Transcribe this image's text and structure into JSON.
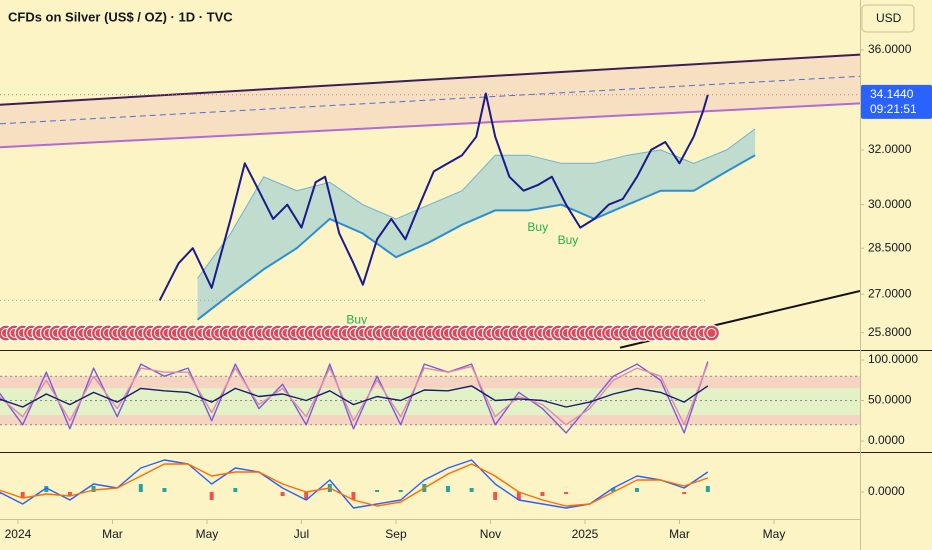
{
  "chart_data": [
    {
      "type": "line",
      "title": "CFDs on Silver (US$ / OZ) · 1D · TVC",
      "currency": "USD",
      "log": true,
      "xlim": [
        -0.38,
        17.82
      ],
      "xticks": [
        {
          "value": 0,
          "label": "2024"
        },
        {
          "value": 2,
          "label": "Mar"
        },
        {
          "value": 4,
          "label": "May"
        },
        {
          "value": 6,
          "label": "Jul"
        },
        {
          "value": 8,
          "label": "Sep"
        },
        {
          "value": 10,
          "label": "Nov"
        },
        {
          "value": 12,
          "label": "2025"
        },
        {
          "value": 14,
          "label": "Mar"
        },
        {
          "value": 16,
          "label": "May"
        }
      ],
      "ylim": [
        25.28,
        38.18
      ],
      "yticks": [
        {
          "value": 36,
          "label": "36.0000"
        },
        {
          "value": 32,
          "label": "32.0000"
        },
        {
          "value": 30,
          "label": "30.0000"
        },
        {
          "value": 28.5,
          "label": "28.5000"
        },
        {
          "value": 27,
          "label": "27.0000"
        },
        {
          "value": 25.8,
          "label": "25.8000"
        }
      ],
      "x": [
        3.0,
        3.4,
        3.7,
        4.1,
        4.5,
        4.8,
        5.1,
        5.4,
        5.7,
        6.0,
        6.3,
        6.5,
        6.8,
        7.1,
        7.3,
        7.6,
        7.9,
        8.2,
        8.5,
        8.8,
        9.1,
        9.4,
        9.7,
        9.9,
        10.1,
        10.4,
        10.7,
        11.0,
        11.3,
        11.6,
        11.9,
        12.2,
        12.5,
        12.8,
        13.1,
        13.4,
        13.7,
        14.0,
        14.3,
        14.5,
        14.6
      ],
      "series": [
        {
          "color": "#1a1a8c",
          "values": [
            26.8,
            28.0,
            28.5,
            27.2,
            29.5,
            31.5,
            30.5,
            29.5,
            30.0,
            29.2,
            30.8,
            31.0,
            29.0,
            28.0,
            27.3,
            28.8,
            29.5,
            28.8,
            30.0,
            31.2,
            31.5,
            31.8,
            32.5,
            34.2,
            32.5,
            31.0,
            30.5,
            30.7,
            31.0,
            30.0,
            29.2,
            29.5,
            30.0,
            30.2,
            31.0,
            32.0,
            32.3,
            31.5,
            32.5,
            33.5,
            34.14
          ]
        }
      ],
      "last_price": {
        "value": 34.144,
        "label": "34.1440"
      },
      "countdown": "09:21:51",
      "cloud": {
        "color": "#8ec9d8",
        "edge": "#2a8fd0",
        "x": [
          3.8,
          4.5,
          5.2,
          5.9,
          6.6,
          7.3,
          8.0,
          8.7,
          9.4,
          10.1,
          10.8,
          11.5,
          12.2,
          12.9,
          13.6,
          14.3,
          15.0,
          15.6
        ],
        "upper": [
          27.5,
          29.0,
          31.0,
          30.5,
          30.8,
          30.0,
          29.5,
          30.0,
          30.5,
          31.8,
          31.8,
          31.5,
          31.5,
          31.8,
          32.0,
          31.5,
          32.0,
          32.8
        ],
        "lower": [
          26.2,
          27.0,
          27.8,
          28.5,
          29.5,
          29.0,
          28.2,
          28.7,
          29.3,
          29.8,
          29.8,
          30.0,
          29.5,
          30.0,
          30.5,
          30.5,
          31.2,
          31.8
        ]
      },
      "channel_fill": "#f5d9c0",
      "trendlines": [
        {
          "x": [
            -0.38,
            17.82
          ],
          "y": [
            33.75,
            35.8
          ],
          "color": "#3a1f5a",
          "style": "solid"
        },
        {
          "x": [
            -0.38,
            17.82
          ],
          "y": [
            32.1,
            33.8
          ],
          "color": "#b36ad6",
          "style": "solid"
        },
        {
          "x": [
            -0.38,
            17.82
          ],
          "y": [
            33.0,
            34.9
          ],
          "color": "#4a6fd6",
          "style": "dashed"
        },
        {
          "x": [
            -0.38,
            17.82
          ],
          "y": [
            34.144,
            34.144
          ],
          "color": "#c77",
          "style": "dotted"
        },
        {
          "x": [
            -0.38,
            14.6
          ],
          "y": [
            26.8,
            26.8
          ],
          "color": "#b9a",
          "style": "dotted"
        },
        {
          "x": [
            12.74,
            17.82
          ],
          "y": [
            25.35,
            27.1
          ],
          "color": "#111111",
          "style": "solid"
        }
      ],
      "annotations": [
        {
          "text": "Buy",
          "x": 11.0,
          "y": 29.2
        },
        {
          "text": "Buy",
          "x": 11.64,
          "y": 28.75
        },
        {
          "text": "Buy",
          "x": 7.17,
          "y": 26.18
        }
      ],
      "annotation_color": "#22b14c"
    },
    {
      "type": "line",
      "ylim": [
        -13.6,
        109.9
      ],
      "yticks": [
        {
          "value": 100,
          "label": "100.0000"
        },
        {
          "value": 50,
          "label": "50.0000"
        },
        {
          "value": 0,
          "label": "0.0000"
        }
      ],
      "bands": [
        {
          "from": 65,
          "to": 80,
          "color": "#f2c6c0"
        },
        {
          "from": 32,
          "to": 65,
          "color": "#d8f0c8"
        },
        {
          "from": 20,
          "to": 32,
          "color": "#f2c6c0"
        }
      ],
      "hlines": [
        80,
        50,
        20
      ],
      "x": [
        -0.4,
        0.1,
        0.6,
        1.1,
        1.6,
        2.1,
        2.6,
        3.1,
        3.6,
        4.1,
        4.6,
        5.1,
        5.6,
        6.1,
        6.6,
        7.1,
        7.6,
        8.1,
        8.6,
        9.1,
        9.6,
        10.1,
        10.6,
        11.1,
        11.6,
        12.1,
        12.6,
        13.1,
        13.6,
        14.1,
        14.6
      ],
      "series": [
        {
          "color": "#7b5cd6",
          "values": [
            60,
            20,
            85,
            15,
            90,
            30,
            95,
            80,
            90,
            25,
            95,
            40,
            70,
            20,
            95,
            15,
            80,
            20,
            95,
            85,
            95,
            20,
            60,
            40,
            10,
            45,
            80,
            95,
            75,
            10,
            98
          ]
        },
        {
          "color": "#e08ab0",
          "values": [
            55,
            30,
            75,
            25,
            80,
            40,
            90,
            85,
            85,
            35,
            90,
            45,
            65,
            30,
            90,
            25,
            75,
            30,
            90,
            85,
            92,
            30,
            55,
            45,
            20,
            40,
            75,
            90,
            80,
            20,
            95
          ]
        },
        {
          "color": "#1a1a6e",
          "values": [
            52,
            42,
            58,
            45,
            60,
            48,
            65,
            62,
            60,
            48,
            65,
            55,
            58,
            50,
            62,
            45,
            55,
            50,
            63,
            62,
            68,
            50,
            52,
            50,
            42,
            48,
            58,
            65,
            60,
            48,
            68
          ]
        }
      ]
    },
    {
      "type": "line",
      "ylim": [
        -0.65,
        0.925
      ],
      "yticks": [
        {
          "value": 0,
          "label": "0.0000"
        }
      ],
      "x": [
        -0.4,
        0.1,
        0.6,
        1.1,
        1.6,
        2.1,
        2.6,
        3.1,
        3.6,
        4.1,
        4.6,
        5.1,
        5.6,
        6.1,
        6.6,
        7.1,
        7.6,
        8.1,
        8.6,
        9.1,
        9.6,
        10.1,
        10.6,
        11.1,
        11.6,
        12.1,
        12.6,
        13.1,
        13.6,
        14.1,
        14.6
      ],
      "series": [
        {
          "color": "#2962ff",
          "values": [
            0,
            -0.3,
            0.1,
            -0.2,
            0.2,
            0.1,
            0.6,
            0.8,
            0.7,
            0.2,
            0.6,
            0.5,
            0.1,
            -0.2,
            0.3,
            -0.4,
            -0.3,
            -0.2,
            0.3,
            0.6,
            0.8,
            0.2,
            -0.2,
            -0.3,
            -0.4,
            -0.3,
            0.1,
            0.4,
            0.3,
            0.1,
            0.5
          ]
        },
        {
          "color": "#ff6d00",
          "values": [
            0.05,
            -0.15,
            -0.05,
            -0.1,
            0.05,
            0.1,
            0.4,
            0.7,
            0.7,
            0.4,
            0.5,
            0.5,
            0.2,
            0,
            0.1,
            -0.2,
            -0.35,
            -0.25,
            0.1,
            0.45,
            0.7,
            0.4,
            0,
            -0.2,
            -0.35,
            -0.3,
            0,
            0.3,
            0.3,
            0.15,
            0.35
          ]
        }
      ],
      "histogram": {
        "up_color": "#26a69a",
        "down_color": "#ef5350",
        "values": [
          -0.05,
          -0.15,
          0.15,
          -0.1,
          0.15,
          0,
          0.2,
          0.1,
          0,
          -0.2,
          0.1,
          0,
          -0.1,
          -0.2,
          0.2,
          -0.2,
          0.05,
          0.05,
          0.2,
          0.15,
          0.1,
          -0.2,
          -0.2,
          -0.1,
          -0.05,
          0,
          0.1,
          0.1,
          0,
          -0.05,
          0.15
        ]
      }
    }
  ]
}
